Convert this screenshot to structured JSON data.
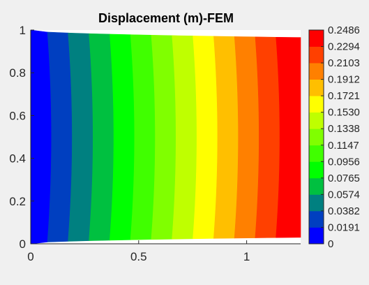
{
  "chart_data": {
    "type": "contour",
    "title": "Displacement (m)-FEM",
    "xlabel": "",
    "ylabel": "",
    "xlim": [
      0,
      1.25
    ],
    "ylim": [
      0,
      1
    ],
    "x_ticks": [
      {
        "value": 0,
        "label": "0"
      },
      {
        "value": 0.5,
        "label": "0.5"
      },
      {
        "value": 1,
        "label": "1"
      }
    ],
    "y_ticks": [
      {
        "value": 0,
        "label": "0"
      },
      {
        "value": 0.2,
        "label": "0.2"
      },
      {
        "value": 0.4,
        "label": "0.4"
      },
      {
        "value": 0.6,
        "label": "0.6"
      },
      {
        "value": 0.8,
        "label": "0.8"
      },
      {
        "value": 1,
        "label": "1"
      }
    ],
    "domain": {
      "x_min": 0,
      "x_max": 1.25,
      "left_edge_y": [
        0,
        1
      ],
      "right_edge_y": [
        0.03,
        0.965
      ]
    },
    "field": "displacement increasing along x",
    "colorbar": {
      "location": "right",
      "min": 0,
      "max": 0.2486,
      "levels": [
        "0",
        "0.0191",
        "0.0382",
        "0.0574",
        "0.0765",
        "0.0956",
        "0.1147",
        "0.1338",
        "0.1530",
        "0.1721",
        "0.1912",
        "0.2103",
        "0.2294",
        "0.2486"
      ],
      "colors": [
        "#0000ff",
        "#003fc0",
        "#008080",
        "#00c040",
        "#00ff00",
        "#40ff00",
        "#80ff00",
        "#bfff00",
        "#ffff00",
        "#ffbf00",
        "#ff8000",
        "#ff4000",
        "#ff0000"
      ]
    },
    "grid": false
  }
}
